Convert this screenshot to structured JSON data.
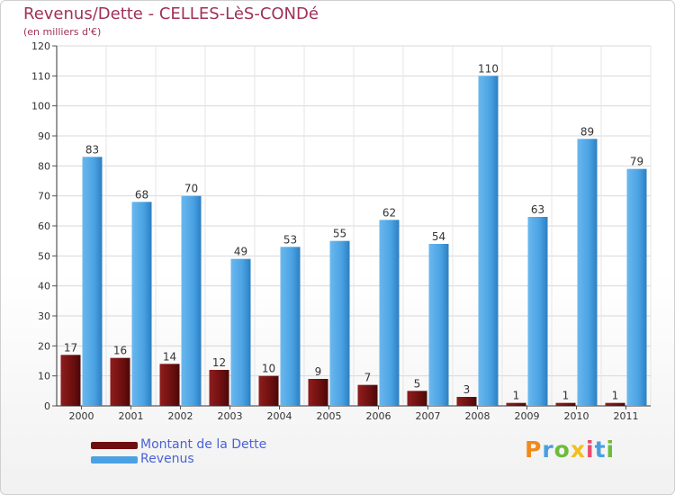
{
  "header": {
    "title": "Revenus/Dette - CELLES-LèS-CONDé",
    "subtitle": "(en milliers d'€)"
  },
  "colors": {
    "dette": "#7a1010",
    "revenus": "#4aa2e3",
    "title": "#a0305a",
    "legend_text": "#4b62d6"
  },
  "brand": {
    "logo_text": "Proxiti"
  },
  "chart_data": {
    "type": "bar",
    "title": "Revenus/Dette - CELLES-LèS-CONDé",
    "subtitle": "(en milliers d'€)",
    "xlabel": "",
    "ylabel": "",
    "categories": [
      "2000",
      "2001",
      "2002",
      "2003",
      "2004",
      "2005",
      "2006",
      "2007",
      "2008",
      "2009",
      "2010",
      "2011"
    ],
    "series": [
      {
        "name": "Montant de la Dette",
        "values": [
          17,
          16,
          14,
          12,
          10,
          9,
          7,
          5,
          3,
          1,
          1,
          1
        ]
      },
      {
        "name": "Revenus",
        "values": [
          83,
          68,
          70,
          49,
          53,
          55,
          62,
          54,
          110,
          63,
          89,
          79
        ]
      }
    ],
    "ylim": [
      0,
      120
    ],
    "yticks": [
      0,
      10,
      20,
      30,
      40,
      50,
      60,
      70,
      80,
      90,
      100,
      110,
      120
    ],
    "grid": true,
    "legend_position": "bottom-left"
  }
}
